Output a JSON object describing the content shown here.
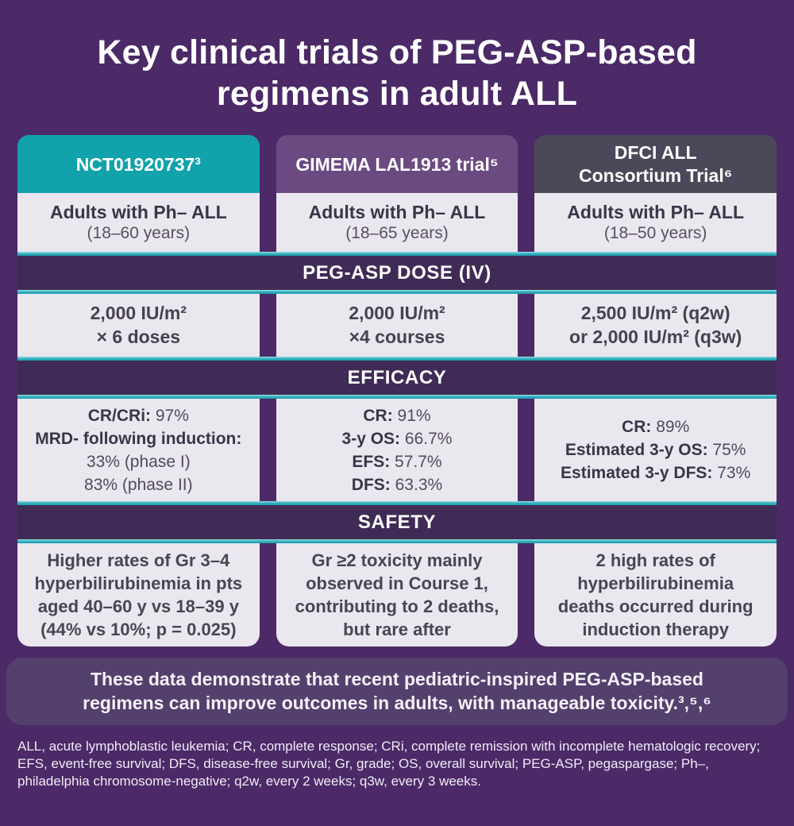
{
  "title": {
    "line1": "Key clinical trials of PEG-ASP-based",
    "line2": "regimens in adult ALL"
  },
  "colors": {
    "page_background": "#4b2a67",
    "trial1_header": "#12a2ab",
    "trial2_header": "#6b4a81",
    "trial3_header": "#4d4859",
    "section_banner": "#3f2b55",
    "teal_rule": "#2fadbc",
    "cell_background": "#eae7ef",
    "cell_text": "#4a4553",
    "summary_background": "#53406c"
  },
  "banners": {
    "dose": "PEG-ASP DOSE (IV)",
    "efficacy": "EFFICACY",
    "safety": "SAFETY"
  },
  "columns": [
    {
      "trial_line1": "NCT01920737³",
      "trial_line2": "",
      "population": "Adults with Ph– ALL",
      "age_range": "(18–60 years)",
      "dose_line1": "2,000 IU/m²",
      "dose_line2": "× 6 doses",
      "efficacy": [
        {
          "label": "CR/CRi:",
          "value": " 97%"
        },
        {
          "label": "MRD- following induction:",
          "value": ""
        },
        {
          "label": "",
          "value": "33% (phase I)"
        },
        {
          "label": "",
          "value": "83% (phase II)"
        }
      ],
      "safety": [
        "Higher rates of Gr 3–4",
        "hyperbilirubinemia in pts",
        "aged 40–60 y vs 18–39 y",
        "(44% vs 10%; p = 0.025)"
      ]
    },
    {
      "trial_line1": "GIMEMA LAL1913 trial⁵",
      "trial_line2": "",
      "population": "Adults with Ph– ALL",
      "age_range": "(18–65 years)",
      "dose_line1": "2,000 IU/m²",
      "dose_line2": "×4 courses",
      "efficacy": [
        {
          "label": "CR:",
          "value": " 91%"
        },
        {
          "label": "3-y OS:",
          "value": " 66.7%"
        },
        {
          "label": "EFS:",
          "value": " 57.7%"
        },
        {
          "label": "DFS:",
          "value": " 63.3%"
        }
      ],
      "safety": [
        "Gr ≥2 toxicity mainly",
        "observed in Course 1,",
        "contributing to 2 deaths,",
        "but rare after"
      ]
    },
    {
      "trial_line1": "DFCI ALL",
      "trial_line2": "Consortium Trial⁶",
      "population": "Adults with Ph– ALL",
      "age_range": "(18–50 years)",
      "dose_line1": "2,500 IU/m² (q2w)",
      "dose_line2": "or 2,000 IU/m² (q3w)",
      "efficacy": [
        {
          "label": "CR:",
          "value": " 89%"
        },
        {
          "label": "Estimated 3-y OS:",
          "value": " 75%"
        },
        {
          "label": "Estimated 3-y DFS:",
          "value": " 73%"
        }
      ],
      "safety": [
        "2 high rates of",
        "hyperbilirubinemia",
        "deaths occurred during",
        "induction therapy"
      ]
    }
  ],
  "summary": {
    "line1": "These data demonstrate that recent pediatric-inspired PEG-ASP-based",
    "line2": "regimens can improve outcomes in adults, with manageable toxicity.³,⁵,⁶"
  },
  "footnote": "ALL, acute lymphoblastic leukemia; CR, complete response; CRi, complete remission with incomplete hematologic recovery;  EFS, event-free survival; DFS, disease-free survival; Gr, grade; OS, overall survival; PEG-ASP, pegaspargase; Ph–, philadelphia chromosome-negative; q2w, every 2 weeks; q3w, every 3 weeks."
}
